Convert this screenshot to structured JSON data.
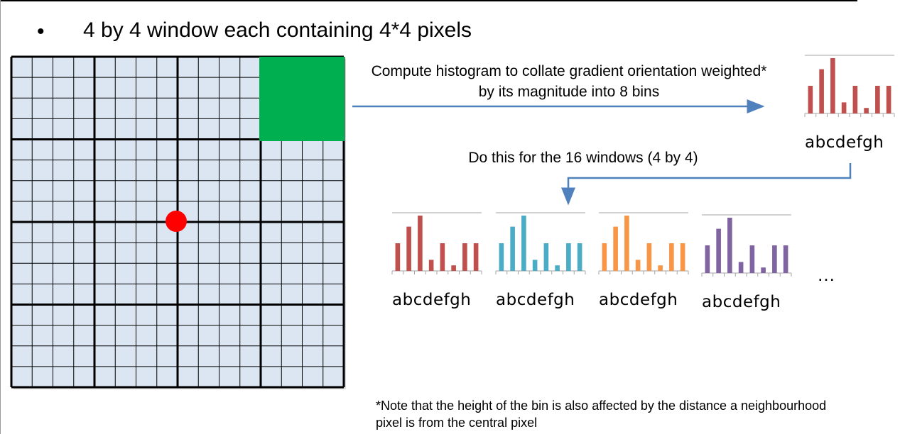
{
  "bullet": {
    "symbol": "•",
    "text": "4 by 4 window each containing 4*4 pixels"
  },
  "annotations": {
    "compute": "Compute histogram to collate gradient orientation weighted* by its magnitude into 8 bins",
    "repeat": "Do this for the 16 windows (4 by 4)",
    "ellipsis": "…",
    "footnote": "*Note that the height of the bin is also affected by the distance a neighbourhood pixel is from the central pixel"
  },
  "colors": {
    "cell_fill": "#dce6f2",
    "highlight_window": "#00b050",
    "center_point": "#ff0000",
    "arrow": "#4f81bd",
    "hist_red": "#c0504d",
    "hist_teal": "#4bacc6",
    "hist_orange": "#f79646",
    "hist_purple": "#8064a2"
  },
  "bin_labels": "abcdefgh",
  "histogram_values": {
    "red": [
      5,
      8,
      10,
      2,
      5,
      1,
      5,
      5
    ],
    "teal": [
      5,
      8,
      10,
      2,
      5,
      1,
      5,
      5
    ],
    "orange": [
      5,
      8,
      10,
      2,
      5,
      1,
      5,
      5
    ],
    "purple": [
      5,
      8,
      10,
      2,
      5,
      1,
      5,
      5
    ]
  }
}
